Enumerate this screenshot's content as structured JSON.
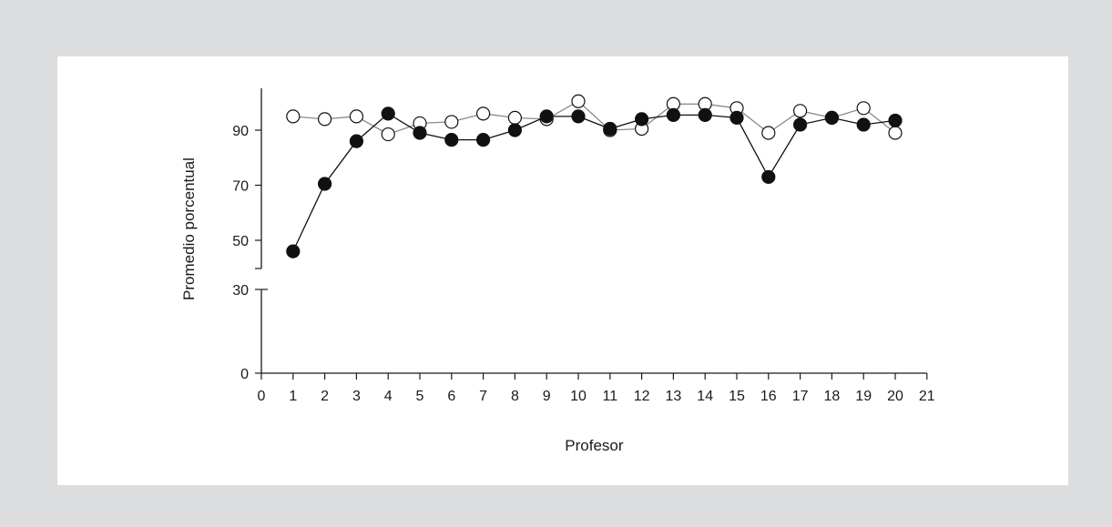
{
  "chart_data": {
    "type": "line",
    "title": "",
    "xlabel": "Profesor",
    "ylabel": "Promedio porcentual",
    "xlim": [
      0,
      21
    ],
    "x_ticks": [
      0,
      1,
      2,
      3,
      4,
      5,
      6,
      7,
      8,
      9,
      10,
      11,
      12,
      13,
      14,
      15,
      16,
      17,
      18,
      19,
      20,
      21
    ],
    "y_ticks_lower": [
      0,
      30
    ],
    "y_ticks_upper": [
      50,
      70,
      90
    ],
    "y_axis_break": true,
    "grid": false,
    "x": [
      1,
      2,
      3,
      4,
      5,
      6,
      7,
      8,
      9,
      10,
      11,
      12,
      13,
      14,
      15,
      16,
      17,
      18,
      19,
      20
    ],
    "series": [
      {
        "marker": "filled-circle",
        "color": "#111111",
        "values": [
          46,
          70.5,
          86,
          96,
          89,
          86.5,
          86.5,
          90,
          95,
          95,
          90.5,
          94,
          95.5,
          95.5,
          94.5,
          73,
          92,
          94.5,
          92,
          93.5
        ]
      },
      {
        "marker": "open-circle",
        "color": "#8a8a8a",
        "values": [
          95,
          94,
          95,
          88.5,
          92.5,
          93,
          96,
          94.5,
          94,
          100.5,
          90,
          90.5,
          99.5,
          99.5,
          98,
          89,
          97,
          94.5,
          98,
          89
        ]
      }
    ]
  }
}
